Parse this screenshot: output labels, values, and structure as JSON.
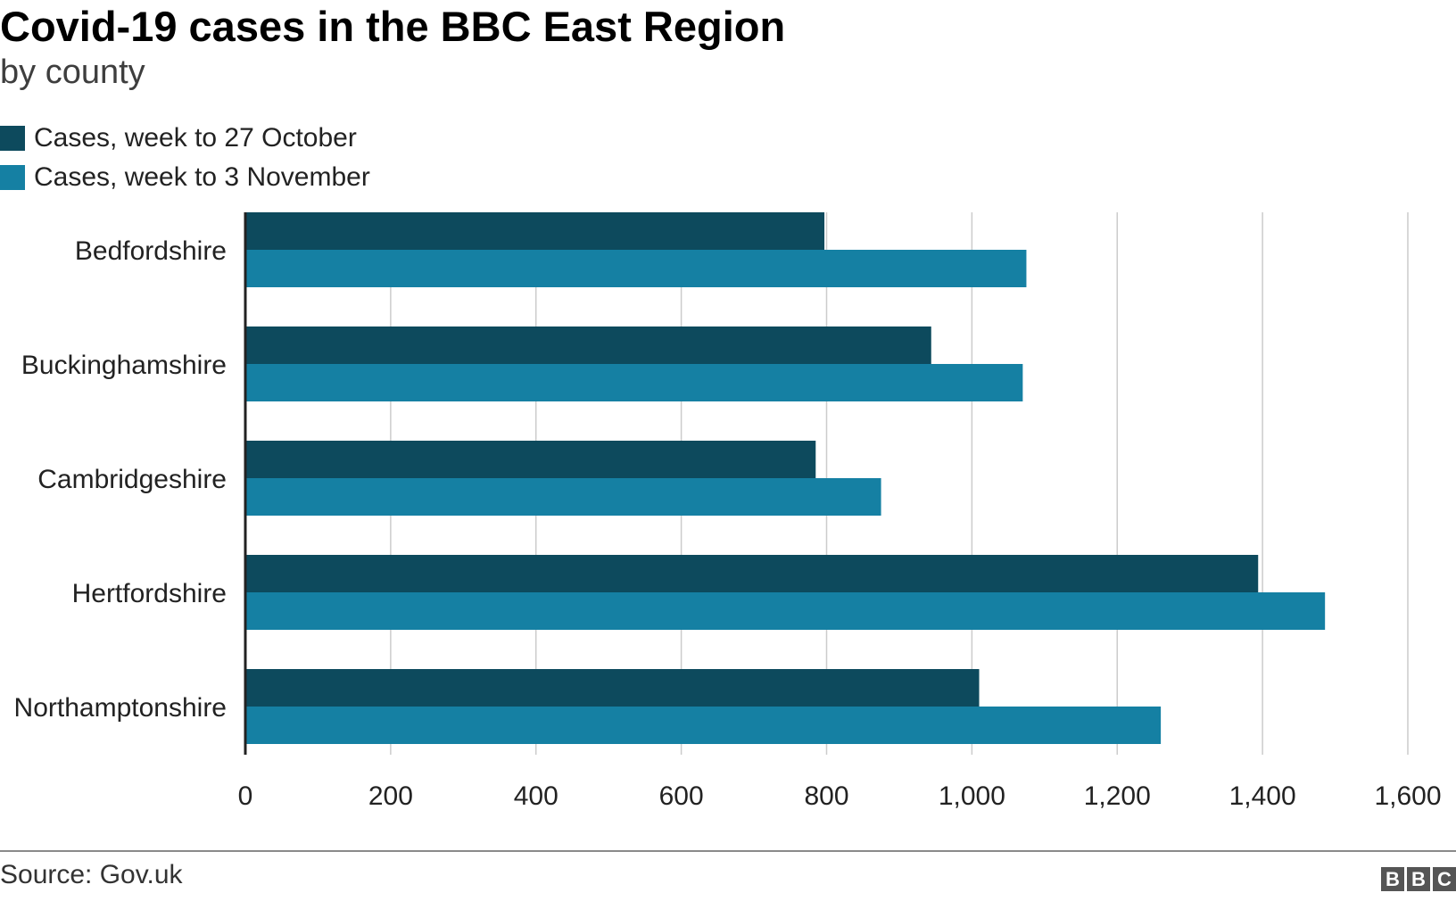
{
  "header": {
    "title": "Covid-19 cases in the BBC East Region",
    "subtitle": "by county"
  },
  "footer": {
    "source": "Source: Gov.uk",
    "logo_letters": [
      "B",
      "B",
      "C"
    ]
  },
  "colors": {
    "series_1": "#0d4a5d",
    "series_2": "#1580a3",
    "gridline": "#cccccc",
    "axis": "#222222"
  },
  "chart_data": {
    "type": "bar",
    "orientation": "horizontal",
    "title": "Covid-19 cases in the BBC East Region",
    "subtitle": "by county",
    "categories": [
      "Bedfordshire",
      "Buckinghamshire",
      "Cambridgeshire",
      "Hertfordshire",
      "Northamptonshire"
    ],
    "series": [
      {
        "name": "Cases, week to 27 October",
        "values": [
          797,
          944,
          785,
          1394,
          1010
        ]
      },
      {
        "name": "Cases, week to 3 November",
        "values": [
          1075,
          1070,
          875,
          1486,
          1260
        ]
      }
    ],
    "xlim": [
      0,
      1600
    ],
    "xticks": [
      0,
      200,
      400,
      600,
      800,
      1000,
      1200,
      1400,
      1600
    ],
    "xtick_labels": [
      "0",
      "200",
      "400",
      "600",
      "800",
      "1,000",
      "1,200",
      "1,400",
      "1,600"
    ],
    "grid": true,
    "legend_position": "top-left"
  }
}
